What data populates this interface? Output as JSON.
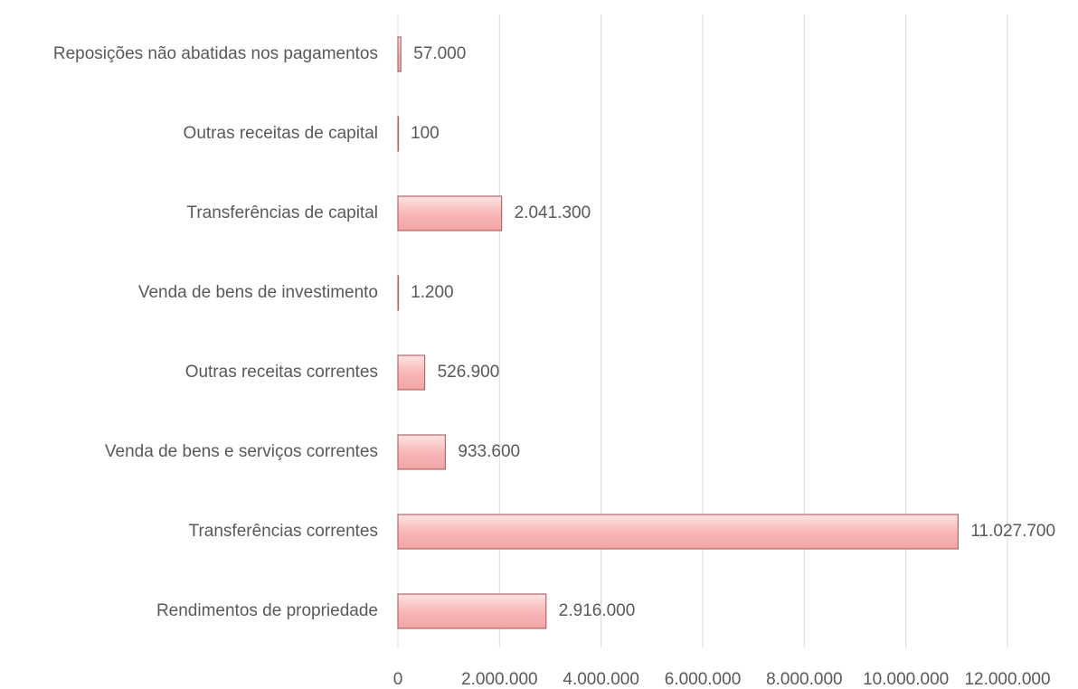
{
  "chart_data": {
    "type": "bar",
    "orientation": "horizontal",
    "categories": [
      "Reposições não abatidas nos pagamentos",
      "Outras receitas de capital",
      "Transferências de capital",
      "Venda de bens de investimento",
      "Outras receitas correntes",
      "Venda de bens e serviços correntes",
      "Transferências correntes",
      "Rendimentos de propriedade"
    ],
    "values": [
      57000,
      100,
      2041300,
      1200,
      526900,
      933600,
      11027700,
      2916000
    ],
    "value_labels": [
      "57.000",
      "100",
      "2.041.300",
      "1.200",
      "526.900",
      "933.600",
      "11.027.700",
      "2.916.000"
    ],
    "color": "#f7b8b8",
    "xlim": [
      0,
      12000000
    ],
    "xticks": [
      0,
      {
        "value": 2000000,
        "label": "2.000.000"
      },
      {
        "value": 4000000,
        "label": "4.000.000"
      },
      {
        "value": 6000000,
        "label": "6.000.000"
      },
      {
        "value": 8000000,
        "label": "8.000.000"
      },
      {
        "value": 10000000,
        "label": "10.000.000"
      },
      {
        "value": 12000000,
        "label": "12.000.000"
      }
    ],
    "grid": true
  }
}
